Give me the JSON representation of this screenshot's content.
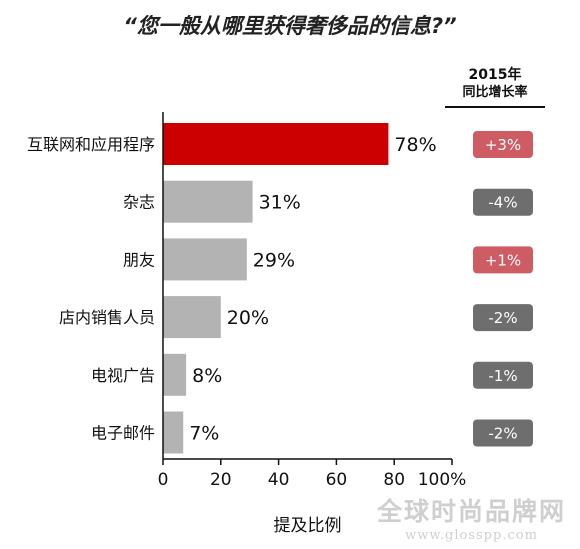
{
  "chart_data": {
    "type": "bar",
    "orientation": "horizontal",
    "title": "“您一般从哪里获得奢侈品的信息?”",
    "categories": [
      "互联网和应用程序",
      "杂志",
      "朋友",
      "店内销售人员",
      "电视广告",
      "电子邮件"
    ],
    "values": [
      78,
      31,
      29,
      20,
      8,
      7
    ],
    "value_labels": [
      "78%",
      "31%",
      "29%",
      "20%",
      "8%",
      "7%"
    ],
    "highlight_index": 0,
    "xlabel": "提及比例",
    "ylabel": "",
    "xlim": [
      0,
      100
    ],
    "x_ticks": [
      "0",
      "20",
      "40",
      "60",
      "80",
      "100%"
    ],
    "colors": {
      "highlight": "#cc0000",
      "default": "#b3b3b3",
      "positive_badge": "#cd5c64",
      "negative_badge": "#6e6e6e"
    }
  },
  "growth": {
    "header_year": "2015年",
    "header_label": "同比增长率",
    "values": [
      "+3%",
      "-4%",
      "+1%",
      "-2%",
      "-1%",
      "-2%"
    ],
    "direction": [
      "positive",
      "negative",
      "positive",
      "negative",
      "negative",
      "negative"
    ]
  },
  "watermark": {
    "line1": "全球时尚品牌网",
    "line2": "www.glosspp.com"
  }
}
